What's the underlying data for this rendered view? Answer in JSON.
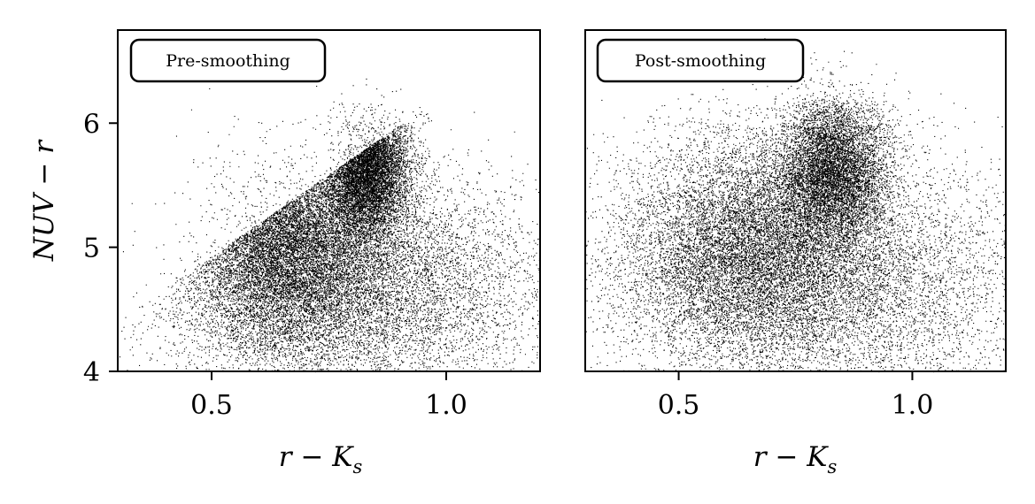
{
  "chart_data": [
    {
      "type": "scatter",
      "panel_label": "Pre-smoothing",
      "xlabel": "r − K",
      "xlabel_sub": "s",
      "ylabel": "NUV − r",
      "xlim": [
        0.3,
        1.2
      ],
      "ylim": [
        4.0,
        6.75
      ],
      "xticks": [
        0.5,
        1.0
      ],
      "xtick_labels": [
        "0.5",
        "1.0"
      ],
      "yticks": [
        4,
        5,
        6
      ],
      "ytick_labels": [
        "4",
        "5",
        "6"
      ],
      "grid": false,
      "point_color": "#000000",
      "point_count": 24000,
      "clusters": [
        {
          "x": 0.83,
          "y": 5.65,
          "sx": 0.045,
          "sy": 0.28,
          "weight": 0.3
        },
        {
          "x": 0.65,
          "y": 5.05,
          "sx": 0.1,
          "sy": 0.42,
          "weight": 0.38
        },
        {
          "x": 0.8,
          "y": 4.7,
          "sx": 0.2,
          "sy": 0.45,
          "weight": 0.32
        }
      ],
      "blue_edge": "x ≥ 0.45 + 0.38·(y − 4.8)"
    },
    {
      "type": "scatter",
      "panel_label": "Post-smoothing",
      "xlabel": "r − K",
      "xlabel_sub": "s",
      "ylabel": "",
      "xlim": [
        0.3,
        1.2
      ],
      "ylim": [
        4.0,
        6.75
      ],
      "xticks": [
        0.5,
        1.0
      ],
      "xtick_labels": [
        "0.5",
        "1.0"
      ],
      "yticks": [],
      "ytick_labels": [],
      "grid": false,
      "point_color": "#000000",
      "point_count": 24000,
      "clusters": [
        {
          "x": 0.83,
          "y": 5.62,
          "sx": 0.06,
          "sy": 0.3,
          "weight": 0.3
        },
        {
          "x": 0.65,
          "y": 5.0,
          "sx": 0.13,
          "sy": 0.45,
          "weight": 0.38
        },
        {
          "x": 0.82,
          "y": 4.7,
          "sx": 0.23,
          "sy": 0.5,
          "weight": 0.32
        }
      ],
      "blue_edge": "none"
    }
  ]
}
